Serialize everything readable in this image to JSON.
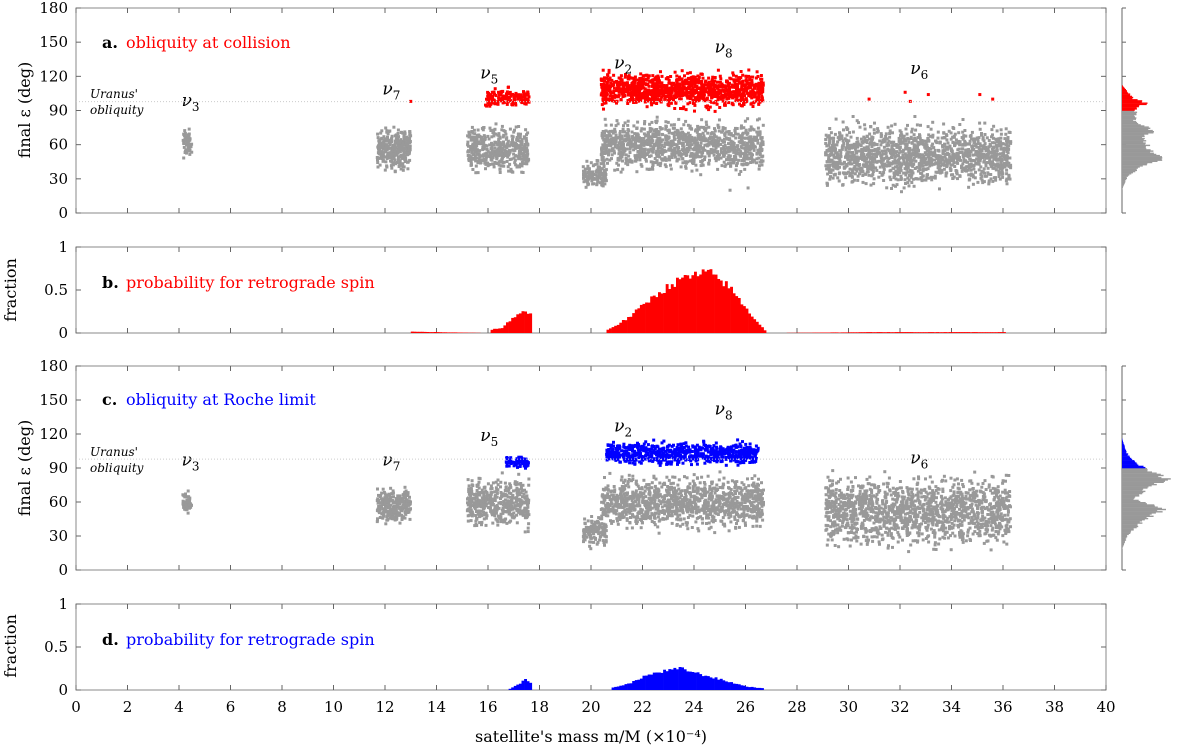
{
  "figure": {
    "xlabel": "satellite's mass m/M (×10⁻⁴)",
    "xticks": [
      "0",
      "2",
      "4",
      "6",
      "8",
      "10",
      "12",
      "14",
      "16",
      "18",
      "20",
      "22",
      "24",
      "26",
      "28",
      "30",
      "32",
      "34",
      "36",
      "38",
      "40"
    ],
    "uranus_label_line1": "Uranus'",
    "uranus_label_line2": "obliquity",
    "colors": {
      "collision": "#ff0000",
      "roche": "#0000ff",
      "prograde": "#999999",
      "reference_line": "#cccccc"
    }
  },
  "chart_data": [
    {
      "panel": "a",
      "type": "scatter",
      "panel_letter": "a.",
      "title": "obliquity at collision",
      "ylabel": "final ε (deg)",
      "xlim": [
        0,
        40
      ],
      "ylim": [
        0,
        180
      ],
      "yticks": [
        "0",
        "30",
        "60",
        "90",
        "120",
        "150",
        "180"
      ],
      "reference_line_y": 97.8,
      "resonance_labels": [
        {
          "name": "ν",
          "sub": "3",
          "x": 4.1,
          "y": 94
        },
        {
          "name": "ν",
          "sub": "7",
          "x": 11.9,
          "y": 104
        },
        {
          "name": "ν",
          "sub": "5",
          "x": 15.7,
          "y": 118
        },
        {
          "name": "ν",
          "sub": "2",
          "x": 20.9,
          "y": 127
        },
        {
          "name": "ν",
          "sub": "8",
          "x": 24.8,
          "y": 141
        },
        {
          "name": "ν",
          "sub": "6",
          "x": 32.4,
          "y": 122
        }
      ],
      "clusters": [
        {
          "x": [
            4.15,
            4.5
          ],
          "y": [
            44,
            78
          ],
          "color": "prograde",
          "count": 60
        },
        {
          "x": [
            11.7,
            13.0
          ],
          "y": [
            33,
            80
          ],
          "color": "prograde",
          "count": 320
        },
        {
          "x": [
            15.2,
            17.6
          ],
          "y": [
            28,
            82
          ],
          "color": "prograde",
          "count": 460
        },
        {
          "x": [
            15.9,
            17.6
          ],
          "y": [
            90,
            112
          ],
          "color": "collision",
          "count": 140
        },
        {
          "x": [
            19.7,
            20.6
          ],
          "y": [
            18,
            50
          ],
          "color": "prograde",
          "count": 130
        },
        {
          "x": [
            20.4,
            26.7
          ],
          "y": [
            30,
            88
          ],
          "color": "prograde",
          "count": 1150
        },
        {
          "x": [
            20.4,
            26.7
          ],
          "y": [
            88,
            128
          ],
          "color": "collision",
          "count": 1150
        },
        {
          "x": [
            29.1,
            36.3
          ],
          "y": [
            15,
            86
          ],
          "color": "prograde",
          "count": 1500
        }
      ],
      "sparse_points": [
        {
          "x": 13.0,
          "y": 98,
          "color": "collision"
        },
        {
          "x": 30.8,
          "y": 100,
          "color": "collision"
        },
        {
          "x": 32.2,
          "y": 106,
          "color": "collision"
        },
        {
          "x": 32.4,
          "y": 98,
          "color": "collision"
        },
        {
          "x": 33.1,
          "y": 104,
          "color": "collision"
        },
        {
          "x": 35.1,
          "y": 104,
          "color": "collision"
        },
        {
          "x": 35.6,
          "y": 100,
          "color": "collision"
        },
        {
          "x": 25.4,
          "y": 20,
          "color": "prograde"
        },
        {
          "x": 26.1,
          "y": 22,
          "color": "prograde"
        }
      ],
      "histogram": {
        "orientation": "horizontal",
        "bins_deg": [
          [
            100,
            8
          ],
          [
            96,
            18
          ],
          [
            92,
            10
          ],
          [
            80,
            9
          ],
          [
            72,
            22
          ],
          [
            66,
            16
          ],
          [
            54,
            20
          ],
          [
            48,
            30
          ],
          [
            40,
            14
          ],
          [
            32,
            4
          ]
        ]
      }
    },
    {
      "panel": "b",
      "type": "bar",
      "panel_letter": "b.",
      "title": "probability for retrograde spin",
      "ylabel": "fraction",
      "xlim": [
        0,
        40
      ],
      "ylim": [
        0,
        1
      ],
      "yticks": [
        "0",
        "0.5",
        "1"
      ],
      "color": "collision",
      "envelope": [
        [
          13.0,
          0.015
        ],
        [
          16.0,
          0.0
        ],
        [
          16.1,
          0.04
        ],
        [
          16.5,
          0.06
        ],
        [
          17.0,
          0.2
        ],
        [
          17.3,
          0.25
        ],
        [
          17.6,
          0.22
        ],
        [
          17.7,
          0.0
        ],
        [
          20.5,
          0.0
        ],
        [
          20.6,
          0.04
        ],
        [
          21.0,
          0.1
        ],
        [
          21.5,
          0.2
        ],
        [
          22.0,
          0.33
        ],
        [
          22.5,
          0.45
        ],
        [
          23.0,
          0.55
        ],
        [
          23.5,
          0.63
        ],
        [
          24.0,
          0.67
        ],
        [
          24.5,
          0.7
        ],
        [
          25.0,
          0.62
        ],
        [
          25.5,
          0.47
        ],
        [
          26.0,
          0.27
        ],
        [
          26.5,
          0.1
        ],
        [
          26.8,
          0.0
        ],
        [
          30.8,
          0.01
        ],
        [
          32.2,
          0.01
        ],
        [
          33.1,
          0.01
        ],
        [
          35.1,
          0.01
        ],
        [
          36.0,
          0.01
        ]
      ]
    },
    {
      "panel": "c",
      "type": "scatter",
      "panel_letter": "c.",
      "title": "obliquity at Roche limit",
      "ylabel": "final ε (deg)",
      "xlim": [
        0,
        40
      ],
      "ylim": [
        0,
        180
      ],
      "yticks": [
        "0",
        "30",
        "60",
        "90",
        "120",
        "150",
        "180"
      ],
      "reference_line_y": 97.8,
      "resonance_labels": [
        {
          "name": "ν",
          "sub": "3",
          "x": 4.1,
          "y": 92
        },
        {
          "name": "ν",
          "sub": "7",
          "x": 11.9,
          "y": 92
        },
        {
          "name": "ν",
          "sub": "5",
          "x": 15.7,
          "y": 114
        },
        {
          "name": "ν",
          "sub": "2",
          "x": 20.9,
          "y": 122
        },
        {
          "name": "ν",
          "sub": "8",
          "x": 24.8,
          "y": 137
        },
        {
          "name": "ν",
          "sub": "6",
          "x": 32.4,
          "y": 94
        }
      ],
      "clusters": [
        {
          "x": [
            4.15,
            4.5
          ],
          "y": [
            46,
            72
          ],
          "color": "prograde",
          "count": 50
        },
        {
          "x": [
            11.7,
            13.0
          ],
          "y": [
            36,
            78
          ],
          "color": "prograde",
          "count": 280
        },
        {
          "x": [
            15.2,
            17.6
          ],
          "y": [
            30,
            88
          ],
          "color": "prograde",
          "count": 460
        },
        {
          "x": [
            16.7,
            17.6
          ],
          "y": [
            88,
            102
          ],
          "color": "roche",
          "count": 70
        },
        {
          "x": [
            19.7,
            20.6
          ],
          "y": [
            18,
            50
          ],
          "color": "prograde",
          "count": 130
        },
        {
          "x": [
            20.4,
            26.7
          ],
          "y": [
            30,
            90
          ],
          "color": "prograde",
          "count": 1200
        },
        {
          "x": [
            20.6,
            26.5
          ],
          "y": [
            90,
            116
          ],
          "color": "roche",
          "count": 700
        },
        {
          "x": [
            29.1,
            36.3
          ],
          "y": [
            12,
            92
          ],
          "color": "prograde",
          "count": 1500
        }
      ],
      "sparse_points": [],
      "histogram": {
        "orientation": "horizontal",
        "bins_deg": [
          [
            104,
            3
          ],
          [
            98,
            6
          ],
          [
            92,
            12
          ],
          [
            80,
            32
          ],
          [
            72,
            18
          ],
          [
            62,
            8
          ],
          [
            54,
            30
          ],
          [
            48,
            22
          ],
          [
            40,
            12
          ],
          [
            30,
            4
          ]
        ]
      }
    },
    {
      "panel": "d",
      "type": "bar",
      "panel_letter": "d.",
      "title": "probability for retrograde spin",
      "ylabel": "fraction",
      "xlim": [
        0,
        40
      ],
      "ylim": [
        0,
        1
      ],
      "yticks": [
        "0",
        "0.5",
        "1"
      ],
      "color": "roche",
      "envelope": [
        [
          16.7,
          0.0
        ],
        [
          16.9,
          0.03
        ],
        [
          17.2,
          0.08
        ],
        [
          17.4,
          0.12
        ],
        [
          17.6,
          0.08
        ],
        [
          17.7,
          0.0
        ],
        [
          20.7,
          0.0
        ],
        [
          20.8,
          0.03
        ],
        [
          21.5,
          0.08
        ],
        [
          22.0,
          0.16
        ],
        [
          22.5,
          0.2
        ],
        [
          23.0,
          0.23
        ],
        [
          23.5,
          0.25
        ],
        [
          24.0,
          0.2
        ],
        [
          24.5,
          0.16
        ],
        [
          25.0,
          0.12
        ],
        [
          25.5,
          0.08
        ],
        [
          26.0,
          0.04
        ],
        [
          26.6,
          0.02
        ],
        [
          26.7,
          0.0
        ]
      ]
    }
  ]
}
